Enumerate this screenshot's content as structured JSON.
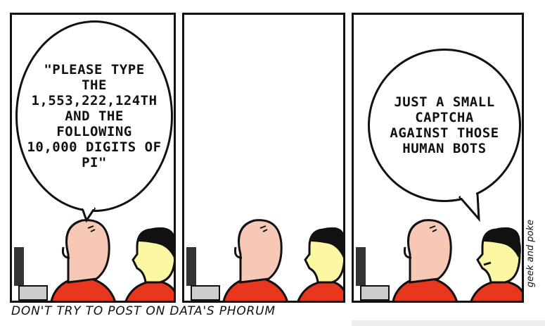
{
  "panels": [
    {
      "speech": "\"PLEASE TYPE\nTHE\n1,553,222,124TH\nAND THE\nFOLLOWING\n10,000 DIGITS OF\nPI\""
    },
    {
      "speech": ""
    },
    {
      "speech": "JUST A SMALL\nCAPTCHA\nAGAINST THOSE\nHUMAN BOTS"
    }
  ],
  "caption": "DON'T TRY TO POST ON DATA'S PHORUM",
  "signature": "geek and poke",
  "colors": {
    "shirt": "#e8361f",
    "bald_skin": "#f7c8b6",
    "yellow_skin": "#fbf7a3",
    "monitor": "#333333",
    "ink": "#111111"
  }
}
